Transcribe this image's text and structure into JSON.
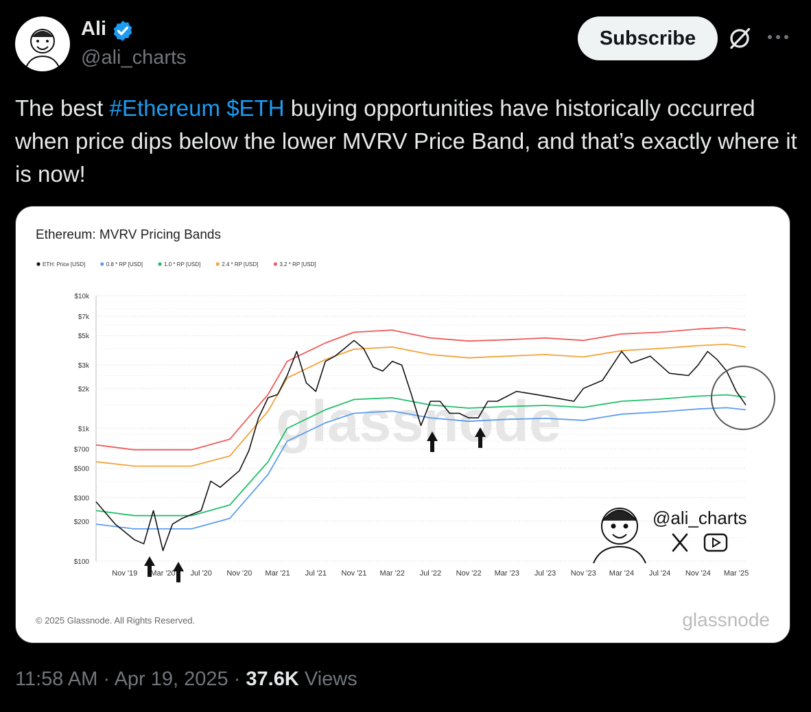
{
  "author": {
    "name": "Ali",
    "handle": "@ali_charts",
    "verified": true
  },
  "actions": {
    "subscribe_label": "Subscribe",
    "grok_icon": "grok-icon",
    "more_icon": "more-icon"
  },
  "tweet": {
    "text_before": "The best ",
    "hashtag": "#Ethereum",
    "space": " ",
    "cashtag": "$ETH",
    "text_after": " buying opportunities have historically occurred when price dips below the lower MVRV Price Band, and that’s exactly where it is now!"
  },
  "meta": {
    "time": "11:58 AM",
    "sep1": " · ",
    "date": "Apr 19, 2025",
    "sep2": " · ",
    "views_count": "37.6K",
    "views_label": " Views"
  },
  "colors": {
    "link": "#1d9bf0",
    "price": "#111111",
    "band_08": "#5b9cf0",
    "band_10": "#1fbf6a",
    "band_24": "#f2a33a",
    "band_32": "#ef5b5b"
  },
  "chart_data": {
    "type": "line",
    "title": "Ethereum: MVRV Pricing Bands",
    "yscale": "log",
    "ylim": [
      100,
      10000
    ],
    "xlim": [
      "2019-08",
      "2025-04"
    ],
    "y_ticks": [
      "$10k",
      "$7k",
      "$5k",
      "$3k",
      "$2k",
      "$1k",
      "$700",
      "$500",
      "$300",
      "$200",
      "$100"
    ],
    "y_tick_values": [
      10000,
      7000,
      5000,
      3000,
      2000,
      1000,
      700,
      500,
      300,
      200,
      100
    ],
    "x_ticks": [
      "Nov '19",
      "Mar '20",
      "Jul '20",
      "Nov '20",
      "Mar '21",
      "Jul '21",
      "Nov '21",
      "Mar '22",
      "Jul '22",
      "Nov '22",
      "Mar '23",
      "Jul '23",
      "Nov '23",
      "Mar '24",
      "Jul '24",
      "Nov '24",
      "Mar '25"
    ],
    "x_tick_dates": [
      "2019-11",
      "2020-03",
      "2020-07",
      "2020-11",
      "2021-03",
      "2021-07",
      "2021-11",
      "2022-03",
      "2022-07",
      "2022-11",
      "2023-03",
      "2023-07",
      "2023-11",
      "2024-03",
      "2024-07",
      "2024-11",
      "2025-03"
    ],
    "legend_position": "top-left",
    "grid": true,
    "series": [
      {
        "name": "ETH: Price [USD]",
        "color": "#111111",
        "x": [
          "2019-08",
          "2019-10",
          "2019-12",
          "2020-01",
          "2020-02",
          "2020-03",
          "2020-04",
          "2020-05",
          "2020-07",
          "2020-08",
          "2020-09",
          "2020-11",
          "2020-12",
          "2021-01",
          "2021-02",
          "2021-03",
          "2021-04",
          "2021-05",
          "2021-06",
          "2021-07",
          "2021-08",
          "2021-09",
          "2021-10",
          "2021-11",
          "2021-12",
          "2022-01",
          "2022-02",
          "2022-03",
          "2022-04",
          "2022-05",
          "2022-06",
          "2022-07",
          "2022-08",
          "2022-09",
          "2022-10",
          "2022-11",
          "2022-12",
          "2023-01",
          "2023-02",
          "2023-04",
          "2023-06",
          "2023-08",
          "2023-10",
          "2023-11",
          "2024-01",
          "2024-03",
          "2024-04",
          "2024-06",
          "2024-08",
          "2024-10",
          "2024-11",
          "2024-12",
          "2025-01",
          "2025-02",
          "2025-03",
          "2025-04"
        ],
        "values": [
          280,
          190,
          145,
          135,
          240,
          120,
          190,
          210,
          240,
          400,
          360,
          480,
          680,
          1200,
          1700,
          1800,
          2500,
          3800,
          2200,
          1900,
          3200,
          3500,
          4000,
          4600,
          4000,
          2900,
          2700,
          3200,
          3000,
          1800,
          1050,
          1600,
          1600,
          1300,
          1300,
          1200,
          1200,
          1600,
          1600,
          1900,
          1800,
          1700,
          1600,
          2000,
          2300,
          3800,
          3100,
          3500,
          2600,
          2500,
          3000,
          3800,
          3300,
          2700,
          1900,
          1500
        ]
      },
      {
        "name": "0.8 * RP [USD]",
        "color": "#5b9cf0",
        "x": [
          "2019-08",
          "2019-12",
          "2020-06",
          "2020-10",
          "2021-02",
          "2021-04",
          "2021-08",
          "2021-11",
          "2022-03",
          "2022-07",
          "2022-11",
          "2023-03",
          "2023-07",
          "2023-11",
          "2024-03",
          "2024-07",
          "2024-11",
          "2025-02",
          "2025-04"
        ],
        "values": [
          190,
          175,
          175,
          210,
          450,
          800,
          1100,
          1300,
          1350,
          1200,
          1130,
          1170,
          1190,
          1150,
          1280,
          1330,
          1400,
          1430,
          1380
        ]
      },
      {
        "name": "1.0 * RP [USD]",
        "color": "#1fbf6a",
        "x": [
          "2019-08",
          "2019-12",
          "2020-06",
          "2020-10",
          "2021-02",
          "2021-04",
          "2021-08",
          "2021-11",
          "2022-03",
          "2022-07",
          "2022-11",
          "2023-03",
          "2023-07",
          "2023-11",
          "2024-03",
          "2024-07",
          "2024-11",
          "2025-02",
          "2025-04"
        ],
        "values": [
          240,
          220,
          220,
          265,
          560,
          1000,
          1380,
          1650,
          1700,
          1500,
          1420,
          1460,
          1490,
          1440,
          1600,
          1660,
          1750,
          1790,
          1720
        ]
      },
      {
        "name": "2.4 * RP [USD]",
        "color": "#f2a33a",
        "x": [
          "2019-08",
          "2019-12",
          "2020-06",
          "2020-10",
          "2021-02",
          "2021-04",
          "2021-08",
          "2021-11",
          "2022-03",
          "2022-07",
          "2022-11",
          "2023-03",
          "2023-07",
          "2023-11",
          "2024-03",
          "2024-07",
          "2024-11",
          "2025-02",
          "2025-04"
        ],
        "values": [
          560,
          520,
          520,
          620,
          1350,
          2400,
          3300,
          3950,
          4100,
          3600,
          3400,
          3500,
          3600,
          3450,
          3850,
          4000,
          4200,
          4300,
          4100
        ]
      },
      {
        "name": "3.2 * RP [USD]",
        "color": "#ef5b5b",
        "x": [
          "2019-08",
          "2019-12",
          "2020-06",
          "2020-10",
          "2021-02",
          "2021-04",
          "2021-08",
          "2021-11",
          "2022-03",
          "2022-07",
          "2022-11",
          "2023-03",
          "2023-07",
          "2023-11",
          "2024-03",
          "2024-07",
          "2024-11",
          "2025-02",
          "2025-04"
        ],
        "values": [
          750,
          690,
          690,
          830,
          1800,
          3200,
          4400,
          5300,
          5500,
          4800,
          4550,
          4650,
          4800,
          4600,
          5150,
          5300,
          5600,
          5750,
          5500
        ]
      }
    ],
    "watermark": "glassnode",
    "overlay_handle": "@ali_charts",
    "copyright": "© 2025 Glassnode. All Rights Reserved.",
    "footer_brand": "glassnode"
  }
}
